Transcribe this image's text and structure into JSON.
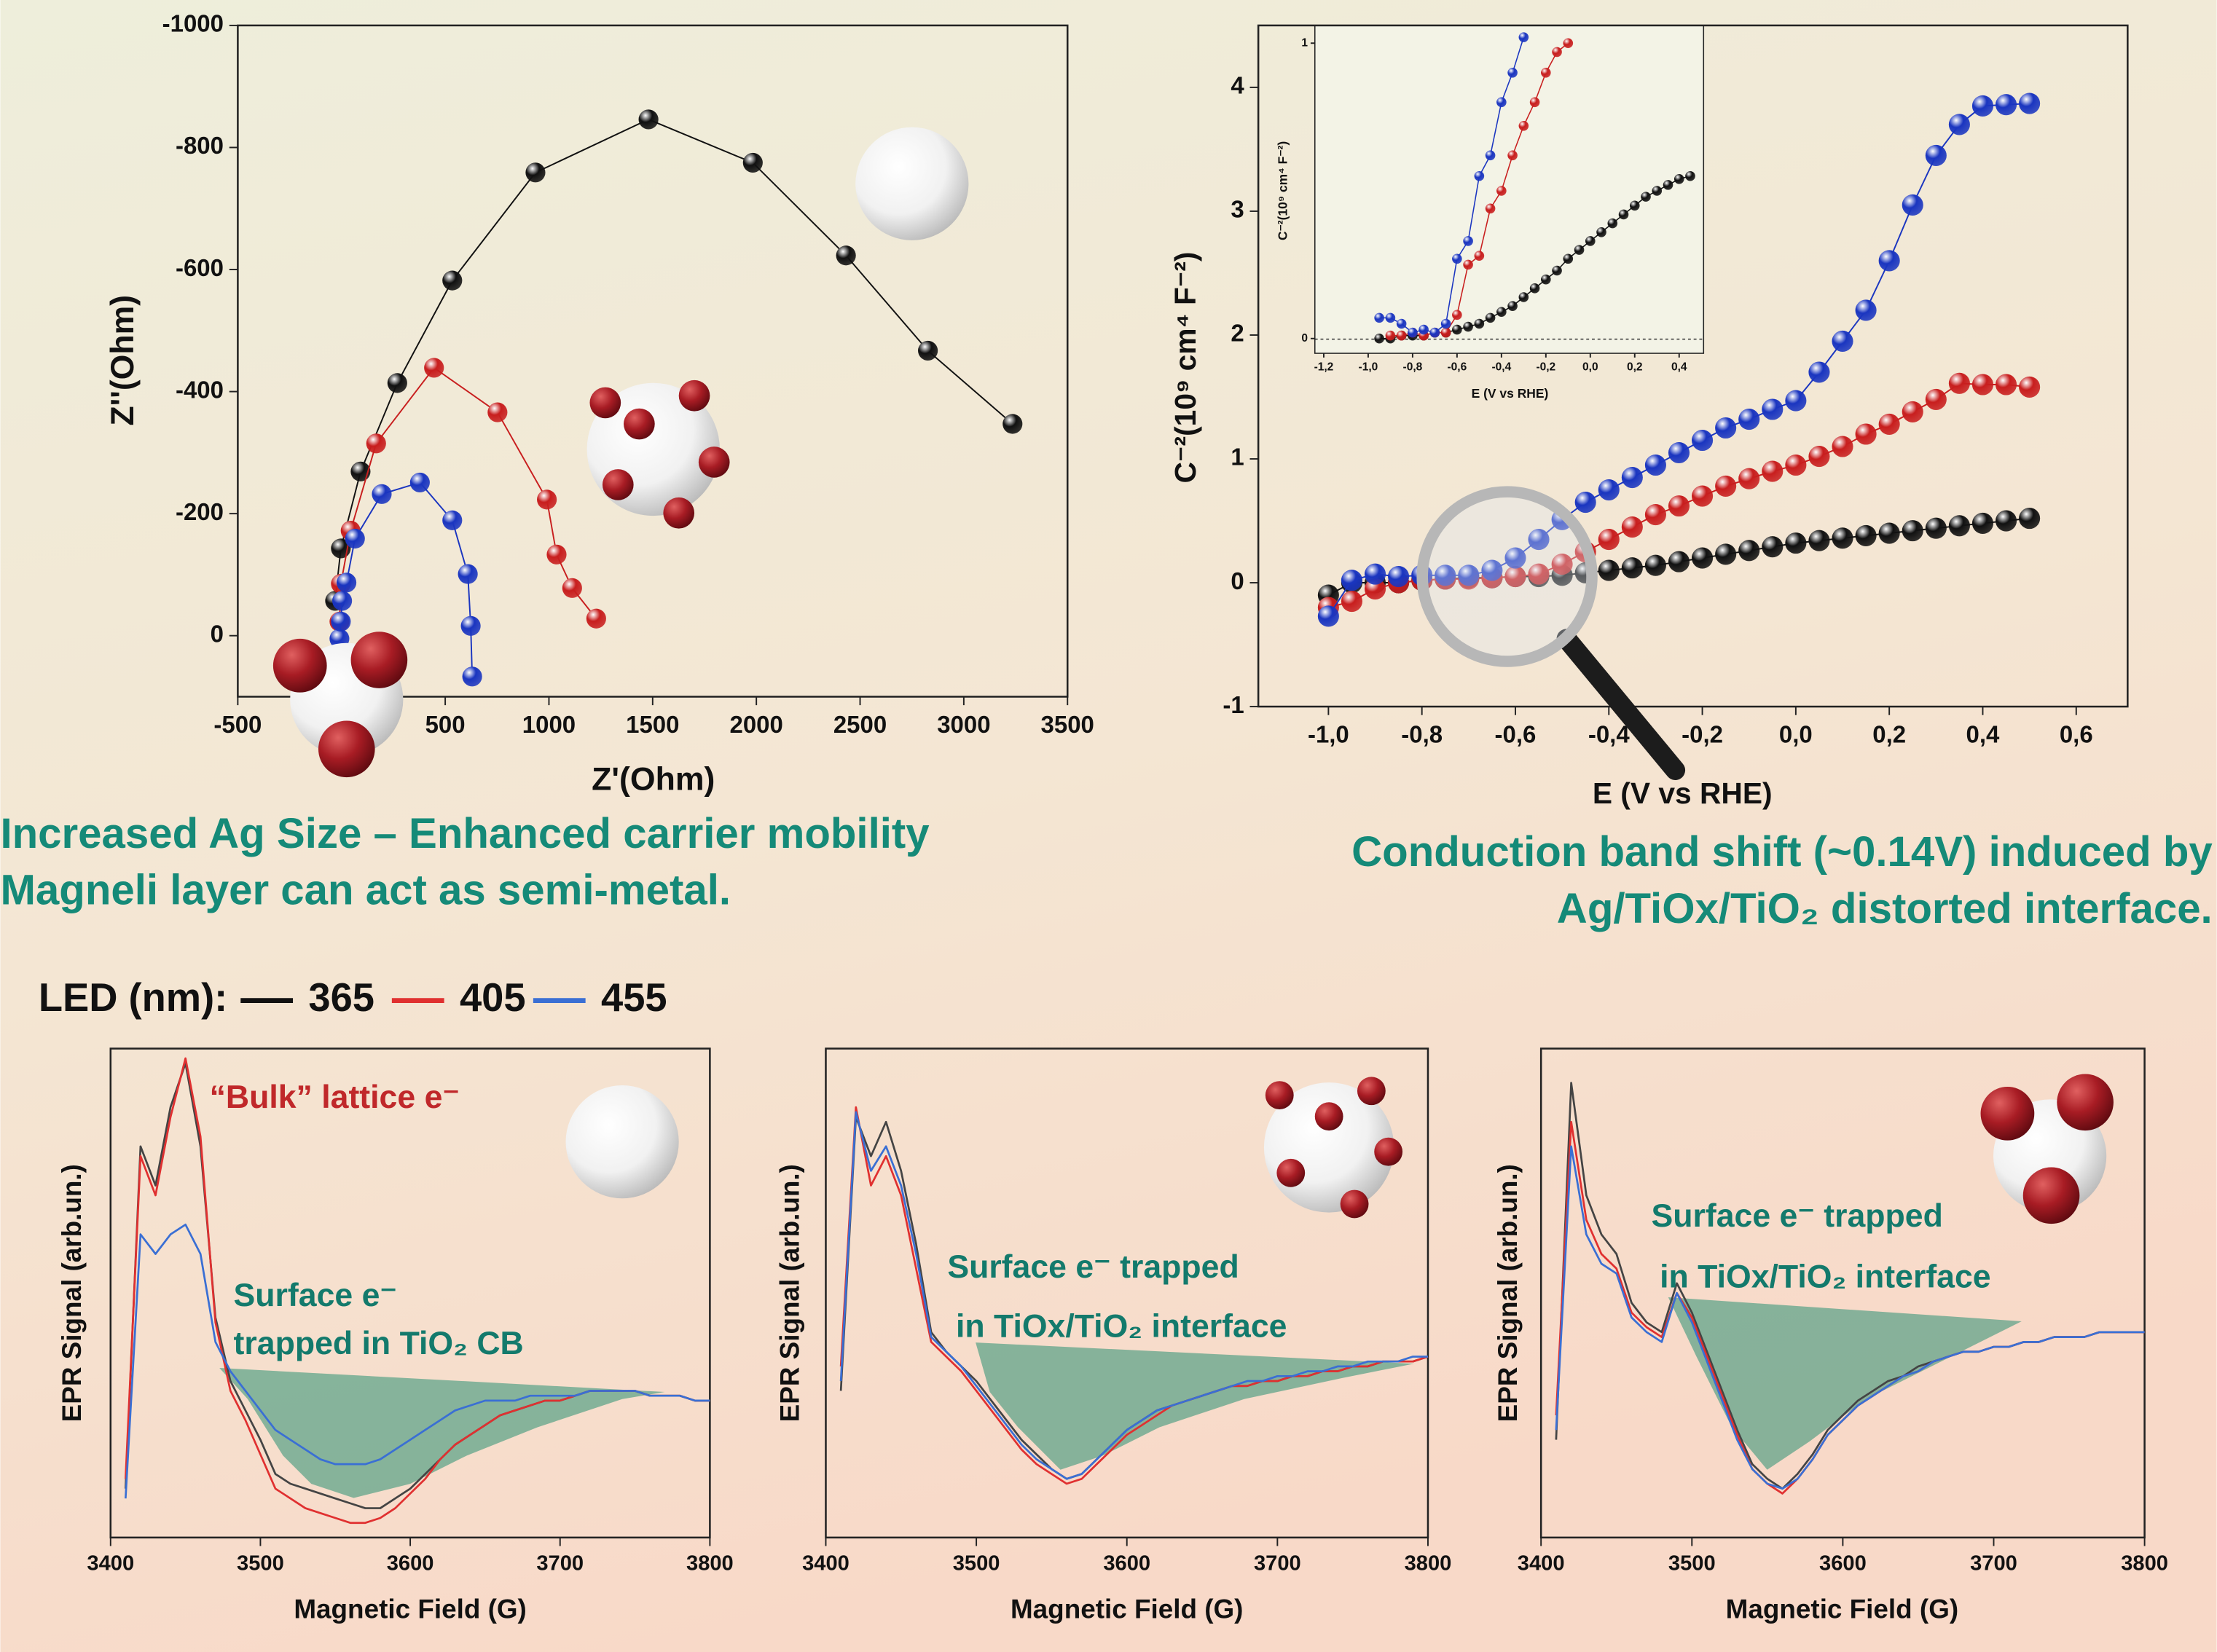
{
  "chart_data": [
    {
      "type": "line",
      "markers": true,
      "xlabel": "Z'(Ohm)",
      "ylabel": "Z''(Ohm)",
      "xlim": [
        -500,
        3500
      ],
      "xticks": [
        -500,
        500,
        1000,
        1500,
        2000,
        2500,
        3000,
        3500
      ],
      "ylim": [
        100,
        -1000
      ],
      "yticks": [
        -1000,
        -800,
        -600,
        -400,
        -200,
        0
      ],
      "series": [
        {
          "color": "#111111",
          "x": [
            -31,
            -3,
            92,
            269,
            534,
            935,
            1480,
            1983,
            2432,
            2827,
            3235
          ],
          "values": [
            -57,
            -143,
            -269,
            -414,
            -582,
            -759,
            -846,
            -775,
            -623,
            -467,
            -347
          ]
        },
        {
          "color": "#c81e1e",
          "x": [
            -10,
            -3,
            44,
            167,
            446,
            752,
            990,
            1037,
            1112,
            1228
          ],
          "values": [
            -23,
            -85,
            -172,
            -315,
            -439,
            -366,
            -223,
            -133,
            -78,
            -28
          ]
        },
        {
          "color": "#1a35c0",
          "x": [
            -10,
            -3,
            3,
            24,
            65,
            194,
            378,
            534,
            609,
            623,
            630
          ],
          "values": [
            5,
            -23,
            -57,
            -87,
            -159,
            -232,
            -251,
            -189,
            -101,
            -16,
            67
          ]
        }
      ],
      "caption": [
        "Increased Ag Size – Enhanced carrier mobility",
        "Magneli layer can act as semi-metal."
      ]
    },
    {
      "type": "line",
      "markers": true,
      "xlabel": "E (V vs RHE)",
      "ylabel": "C⁻²(10⁹ cm⁴ F⁻²)",
      "xlim": [
        -1.15,
        0.71
      ],
      "xticks": [
        {
          "value": -1,
          "label": "-1,0"
        },
        {
          "value": -0.8,
          "label": "-0,8"
        },
        {
          "value": -0.6,
          "label": "-0,6"
        },
        {
          "value": -0.4,
          "label": "-0,4"
        },
        {
          "value": -0.2,
          "label": "-0,2"
        },
        {
          "value": 0,
          "label": "0,0"
        },
        {
          "value": 0.2,
          "label": "0,2"
        },
        {
          "value": 0.4,
          "label": "0,4"
        },
        {
          "value": 0.6,
          "label": "0,6"
        }
      ],
      "ylim": [
        -1,
        4.5
      ],
      "yticks": [
        -1,
        0,
        1,
        2,
        3,
        4
      ],
      "x": [
        -1.0,
        -0.95,
        -0.9,
        -0.85,
        -0.8,
        -0.75,
        -0.7,
        -0.65,
        -0.6,
        -0.55,
        -0.5,
        -0.45,
        -0.4,
        -0.35,
        -0.3,
        -0.25,
        -0.2,
        -0.15,
        -0.1,
        -0.05,
        0,
        0.05,
        0.1,
        0.15,
        0.2,
        0.25,
        0.3,
        0.35,
        0.4,
        0.45,
        0.5
      ],
      "series": [
        {
          "color": "#111111",
          "values": [
            -0.1,
            0,
            0,
            0,
            0.02,
            0.03,
            0.04,
            0.04,
            0.05,
            0.05,
            0.06,
            0.08,
            0.1,
            0.12,
            0.14,
            0.17,
            0.2,
            0.23,
            0.26,
            0.29,
            0.32,
            0.34,
            0.36,
            0.38,
            0.4,
            0.42,
            0.44,
            0.46,
            0.48,
            0.5,
            0.52
          ]
        },
        {
          "color": "#c81e1e",
          "values": [
            -0.2,
            -0.15,
            -0.05,
            0,
            0.02,
            0.03,
            0.03,
            0.04,
            0.05,
            0.07,
            0.15,
            0.25,
            0.35,
            0.45,
            0.55,
            0.62,
            0.7,
            0.78,
            0.84,
            0.9,
            0.95,
            1.02,
            1.1,
            1.2,
            1.28,
            1.38,
            1.48,
            1.61,
            1.6,
            1.6,
            1.58
          ]
        },
        {
          "color": "#1a35c0",
          "values": [
            -0.27,
            0.02,
            0.07,
            0.05,
            0.06,
            0.06,
            0.06,
            0.1,
            0.2,
            0.35,
            0.51,
            0.65,
            0.75,
            0.85,
            0.95,
            1.05,
            1.15,
            1.25,
            1.32,
            1.4,
            1.47,
            1.7,
            1.95,
            2.2,
            2.6,
            3.05,
            3.45,
            3.7,
            3.85,
            3.86,
            3.87
          ]
        }
      ],
      "caption": [
        "Conduction band shift (~0.14V) induced by",
        "Ag/TiOx/TiO₂ distorted interface."
      ]
    },
    {
      "type": "line",
      "markers": true,
      "xlabel": "E (V vs RHE)",
      "ylabel": "C⁻²(10⁹ cm⁴ F⁻²)",
      "xlim": [
        -1.24,
        0.51
      ],
      "xticks": [
        {
          "value": -1.2,
          "label": "-1,2"
        },
        {
          "value": -1,
          "label": "-1,0"
        },
        {
          "value": -0.8,
          "label": "-0,8"
        },
        {
          "value": -0.6,
          "label": "-0,6"
        },
        {
          "value": -0.4,
          "label": "-0,4"
        },
        {
          "value": -0.2,
          "label": "-0,2"
        },
        {
          "value": 0,
          "label": "0,0"
        },
        {
          "value": 0.2,
          "label": "0,2"
        },
        {
          "value": 0.4,
          "label": "0,4"
        }
      ],
      "ylim": [
        -0.05,
        1.06
      ],
      "yticks": [
        0,
        1
      ],
      "x": [
        -1.0,
        -0.95,
        -0.9,
        -0.85,
        -0.8,
        -0.75,
        -0.7,
        -0.65,
        -0.6,
        -0.55,
        -0.5,
        -0.45,
        -0.4,
        -0.35,
        -0.3,
        -0.25,
        -0.2,
        -0.15,
        -0.1,
        -0.05,
        0,
        0.05,
        0.1,
        0.15,
        0.2,
        0.25,
        0.3,
        0.35,
        0.4,
        0.45
      ],
      "series": [
        {
          "color": "#111111",
          "values": [
            null,
            0,
            0,
            0.01,
            0.01,
            0.01,
            0.02,
            0.02,
            0.03,
            0.04,
            0.05,
            0.07,
            0.09,
            0.11,
            0.14,
            0.17,
            0.2,
            0.23,
            0.27,
            0.3,
            0.33,
            0.36,
            0.39,
            0.42,
            0.45,
            0.48,
            0.5,
            0.52,
            0.54,
            0.55
          ]
        },
        {
          "color": "#c81e1e",
          "values": [
            null,
            null,
            0.01,
            0.01,
            0.02,
            0.01,
            0.02,
            0.02,
            0.08,
            0.25,
            0.28,
            0.44,
            0.5,
            0.62,
            0.72,
            0.8,
            0.9,
            0.97,
            1.0,
            null,
            null,
            null,
            null,
            null,
            null,
            null,
            null,
            null,
            null,
            null
          ]
        },
        {
          "color": "#1a35c0",
          "values": [
            null,
            0.07,
            0.07,
            0.05,
            0.02,
            0.03,
            0.02,
            0.05,
            0.27,
            0.33,
            0.55,
            0.62,
            0.8,
            0.9,
            1.02,
            null,
            null,
            null,
            null,
            null,
            null,
            null,
            null,
            null,
            null,
            null,
            null,
            null,
            null,
            null
          ]
        }
      ]
    },
    {
      "type": "line",
      "xlabel": "Magnetic Field (G)",
      "ylabel": "EPR Signal (arb.un.)",
      "legend_title": "LED (nm):",
      "xlim": [
        3400,
        3800
      ],
      "xticks": [
        3400,
        3500,
        3600,
        3700,
        3800
      ],
      "ylim": [
        0,
        100
      ],
      "x": [
        3410,
        3420,
        3430,
        3440,
        3450,
        3460,
        3470,
        3480,
        3490,
        3500,
        3510,
        3520,
        3530,
        3540,
        3550,
        3560,
        3570,
        3580,
        3590,
        3600,
        3610,
        3620,
        3630,
        3640,
        3650,
        3660,
        3670,
        3680,
        3690,
        3700,
        3710,
        3720,
        3730,
        3740,
        3750,
        3760,
        3770,
        3780,
        3790,
        3800
      ],
      "series": [
        {
          "name": "365",
          "color": "#444444",
          "values": [
            10,
            80,
            72,
            88,
            97,
            80,
            45,
            32,
            26,
            20,
            13,
            11,
            10,
            9,
            8,
            7,
            6,
            6,
            8,
            10,
            13,
            16,
            19,
            21,
            23,
            25,
            26,
            27,
            28,
            28,
            29,
            30,
            30,
            30,
            30,
            29,
            29,
            29,
            28,
            28
          ]
        },
        {
          "name": "405",
          "color": "#e03030",
          "values": [
            12,
            78,
            70,
            86,
            98,
            82,
            44,
            30,
            24,
            17,
            10,
            8,
            6,
            5,
            4,
            3,
            3,
            4,
            6,
            9,
            12,
            16,
            19,
            21,
            23,
            25,
            26,
            27,
            28,
            28,
            29,
            30,
            30,
            30,
            30,
            29,
            29,
            29,
            28,
            28
          ]
        },
        {
          "name": "455",
          "color": "#3a6fd4",
          "values": [
            8,
            62,
            58,
            62,
            64,
            58,
            40,
            34,
            30,
            26,
            22,
            20,
            18,
            16,
            15,
            15,
            15,
            16,
            18,
            20,
            22,
            24,
            26,
            27,
            28,
            28,
            28,
            29,
            29,
            29,
            29,
            30,
            30,
            30,
            30,
            29,
            29,
            29,
            28,
            28
          ]
        }
      ],
      "annotations": [
        "“Bulk” lattice e⁻",
        "Surface e⁻",
        "trapped in TiO₂ CB"
      ]
    },
    {
      "type": "line",
      "xlabel": "Magnetic Field (G)",
      "ylabel": "EPR Signal (arb.un.)",
      "xlim": [
        3400,
        3800
      ],
      "xticks": [
        3400,
        3500,
        3600,
        3700,
        3800
      ],
      "ylim": [
        0,
        100
      ],
      "x": [
        3410,
        3420,
        3430,
        3440,
        3450,
        3460,
        3470,
        3480,
        3490,
        3500,
        3510,
        3520,
        3530,
        3540,
        3550,
        3560,
        3570,
        3580,
        3590,
        3600,
        3610,
        3620,
        3630,
        3640,
        3650,
        3660,
        3670,
        3680,
        3690,
        3700,
        3710,
        3720,
        3730,
        3740,
        3750,
        3760,
        3770,
        3780,
        3790,
        3800
      ],
      "series": [
        {
          "color": "#444444",
          "values": [
            30,
            86,
            78,
            85,
            75,
            60,
            42,
            38,
            35,
            32,
            28,
            24,
            20,
            17,
            14,
            12,
            13,
            16,
            19,
            22,
            24,
            26,
            27,
            28,
            29,
            30,
            31,
            31,
            32,
            32,
            33,
            33,
            34,
            34,
            35,
            35,
            36,
            36,
            36,
            37
          ]
        },
        {
          "color": "#e03030",
          "values": [
            35,
            88,
            72,
            78,
            70,
            55,
            40,
            37,
            34,
            30,
            26,
            22,
            18,
            15,
            13,
            11,
            12,
            15,
            18,
            21,
            23,
            25,
            27,
            28,
            29,
            30,
            31,
            31,
            32,
            32,
            33,
            33,
            34,
            34,
            35,
            35,
            36,
            36,
            36,
            37
          ]
        },
        {
          "color": "#3a6fd4",
          "values": [
            32,
            87,
            75,
            80,
            72,
            58,
            41,
            38,
            35,
            31,
            27,
            23,
            19,
            16,
            14,
            12,
            13,
            16,
            19,
            22,
            24,
            26,
            27,
            28,
            29,
            30,
            31,
            32,
            32,
            33,
            33,
            34,
            34,
            35,
            35,
            36,
            36,
            36,
            37,
            37
          ]
        }
      ],
      "annotations": [
        "Surface e⁻ trapped",
        "in TiOx/TiO₂ interface"
      ]
    },
    {
      "type": "line",
      "xlabel": "Magnetic Field (G)",
      "ylabel": "EPR Signal (arb.un.)",
      "xlim": [
        3400,
        3800
      ],
      "xticks": [
        3400,
        3500,
        3600,
        3700,
        3800
      ],
      "ylim": [
        0,
        100
      ],
      "x": [
        3410,
        3420,
        3430,
        3440,
        3450,
        3460,
        3470,
        3480,
        3490,
        3500,
        3510,
        3520,
        3530,
        3540,
        3550,
        3560,
        3570,
        3580,
        3590,
        3600,
        3610,
        3620,
        3630,
        3640,
        3650,
        3660,
        3670,
        3680,
        3690,
        3700,
        3710,
        3720,
        3730,
        3740,
        3750,
        3760,
        3770,
        3780,
        3790,
        3800
      ],
      "series": [
        {
          "color": "#444444",
          "values": [
            20,
            93,
            70,
            62,
            58,
            48,
            44,
            42,
            52,
            46,
            38,
            30,
            22,
            15,
            12,
            10,
            13,
            17,
            22,
            25,
            28,
            30,
            32,
            33,
            35,
            36,
            37,
            38,
            38,
            39,
            39,
            40,
            40,
            41,
            41,
            41,
            42,
            42,
            42,
            42
          ]
        },
        {
          "color": "#e03030",
          "values": [
            25,
            85,
            65,
            58,
            55,
            46,
            43,
            41,
            50,
            45,
            37,
            29,
            21,
            14,
            11,
            9,
            12,
            16,
            21,
            24,
            27,
            29,
            31,
            33,
            34,
            36,
            37,
            38,
            38,
            39,
            39,
            40,
            40,
            41,
            41,
            41,
            42,
            42,
            42,
            42
          ]
        },
        {
          "color": "#3a6fd4",
          "values": [
            22,
            80,
            62,
            56,
            54,
            45,
            42,
            40,
            50,
            44,
            36,
            28,
            20,
            14,
            11,
            10,
            12,
            16,
            21,
            24,
            27,
            29,
            31,
            33,
            34,
            36,
            37,
            38,
            38,
            39,
            39,
            40,
            40,
            41,
            41,
            41,
            42,
            42,
            42,
            42
          ]
        }
      ],
      "annotations": [
        "Surface e⁻ trapped",
        "in TiOx/TiO₂ interface"
      ]
    }
  ]
}
